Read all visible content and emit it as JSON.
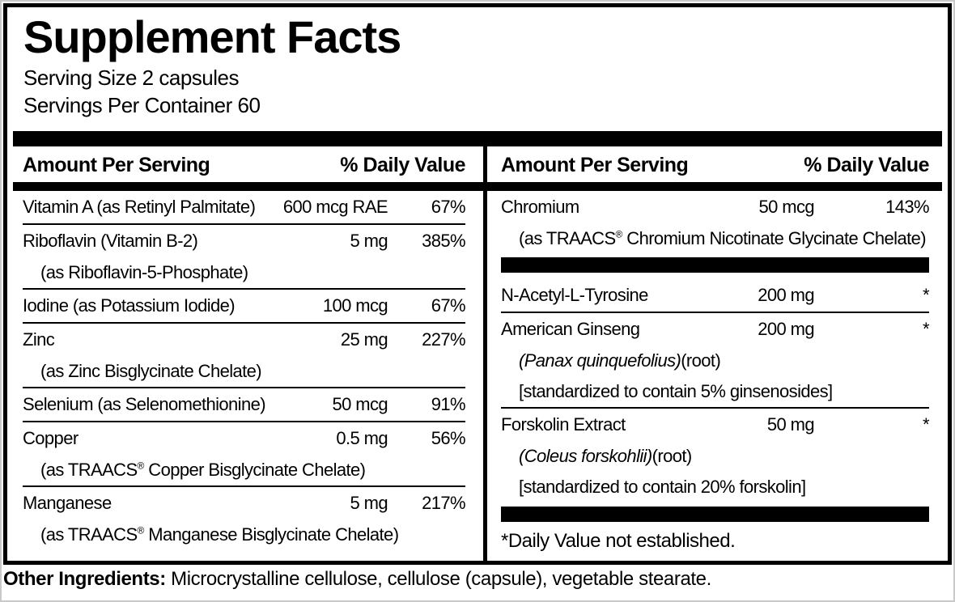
{
  "title": "Supplement Facts",
  "serving": {
    "size": "Serving Size 2 capsules",
    "per_container": "Servings Per Container 60"
  },
  "header": {
    "amount": "Amount Per Serving",
    "daily_value": "% Daily Value"
  },
  "columns": {
    "left": {
      "rows": [
        {
          "name": "Vitamin A (as Retinyl Palmitate)",
          "amount": "600 mcg RAE",
          "dv": "67%"
        },
        {
          "name": "Riboflavin (Vitamin B-2)",
          "amount": "5 mg",
          "dv": "385%",
          "subs": [
            {
              "text": "(as Riboflavin-5-Phosphate)"
            }
          ]
        },
        {
          "name": "Iodine (as Potassium Iodide)",
          "amount": "100 mcg",
          "dv": "67%"
        },
        {
          "name": "Zinc",
          "amount": "25 mg",
          "dv": "227%",
          "subs": [
            {
              "text": "(as Zinc Bisglycinate Chelate)"
            }
          ]
        },
        {
          "name": "Selenium (as Selenomethionine)",
          "amount": "50 mcg",
          "dv": "91%"
        },
        {
          "name": "Copper",
          "amount": "0.5 mg",
          "dv": "56%",
          "subs": [
            {
              "pre": "(as TRAACS",
              "sup": "®",
              "post": " Copper Bisglycinate Chelate)"
            }
          ]
        },
        {
          "name": "Manganese",
          "amount": "5 mg",
          "dv": "217%",
          "subs": [
            {
              "pre": "(as TRAACS",
              "sup": "®",
              "post": " Manganese Bisglycinate Chelate)"
            }
          ]
        }
      ]
    },
    "right": {
      "rows": [
        {
          "name": "Chromium",
          "amount": "50 mcg",
          "dv": "143%",
          "subs": [
            {
              "pre": "(as TRAACS",
              "sup": "®",
              "post": " Chromium Nicotinate Glycinate Chelate)"
            }
          ]
        },
        {
          "name": "N-Acetyl-L-Tyrosine",
          "amount": "200 mg",
          "dv": "*"
        },
        {
          "name": "American Ginseng",
          "amount": "200 mg",
          "dv": "*",
          "subs": [
            {
              "italic": "(Panax quinquefolius)",
              "rest": "(root)"
            },
            {
              "text": "[standardized to contain 5% ginsenosides]"
            }
          ]
        },
        {
          "name": "Forskolin Extract",
          "amount": "50 mg",
          "dv": "*",
          "subs": [
            {
              "italic": "(Coleus forskohlii)",
              "rest": "(root)"
            },
            {
              "text": "[standardized to contain 20% forskolin]"
            }
          ]
        }
      ],
      "footnote": "*Daily Value not established."
    }
  },
  "other_ingredients": {
    "label": "Other Ingredients:",
    "text": " Microcrystalline cellulose, cellulose (capsule), vegetable stearate."
  },
  "colors": {
    "ink": "#000000",
    "background": "#ffffff"
  }
}
